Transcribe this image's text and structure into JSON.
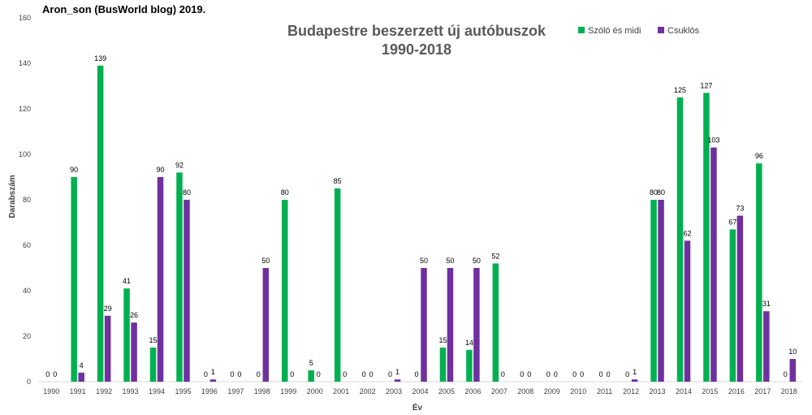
{
  "credit": "Aron_son (BusWorld blog) 2019.",
  "chart_data": {
    "type": "bar",
    "title": "Budapestre beszerzett új autóbuszok",
    "subtitle": "1990-2018",
    "xlabel": "Év",
    "ylabel": "Darabszám",
    "ylim": [
      0,
      160
    ],
    "yticks": [
      0,
      20,
      40,
      60,
      80,
      100,
      120,
      140,
      160
    ],
    "grid": false,
    "legend_position": "top-right",
    "categories": [
      "1990",
      "1991",
      "1992",
      "1993",
      "1994",
      "1995",
      "1996",
      "1997",
      "1998",
      "1999",
      "2000",
      "2001",
      "2002",
      "2003",
      "2004",
      "2005",
      "2006",
      "2007",
      "2008",
      "2009",
      "2010",
      "2011",
      "2012",
      "2013",
      "2014",
      "2015",
      "2016",
      "2017",
      "2018"
    ],
    "series": [
      {
        "name": "Szóló és midi",
        "color": "#00b050",
        "values": [
          0,
          90,
          139,
          41,
          15,
          92,
          0,
          0,
          0,
          80,
          5,
          85,
          0,
          0,
          0,
          15,
          14,
          52,
          0,
          0,
          0,
          0,
          0,
          80,
          125,
          127,
          67,
          96,
          0
        ]
      },
      {
        "name": "Csuklós",
        "color": "#7030a0",
        "values": [
          0,
          4,
          29,
          26,
          90,
          80,
          1,
          0,
          50,
          0,
          0,
          0,
          0,
          1,
          50,
          50,
          50,
          0,
          0,
          0,
          0,
          0,
          1,
          80,
          62,
          103,
          73,
          31,
          10
        ]
      }
    ]
  }
}
